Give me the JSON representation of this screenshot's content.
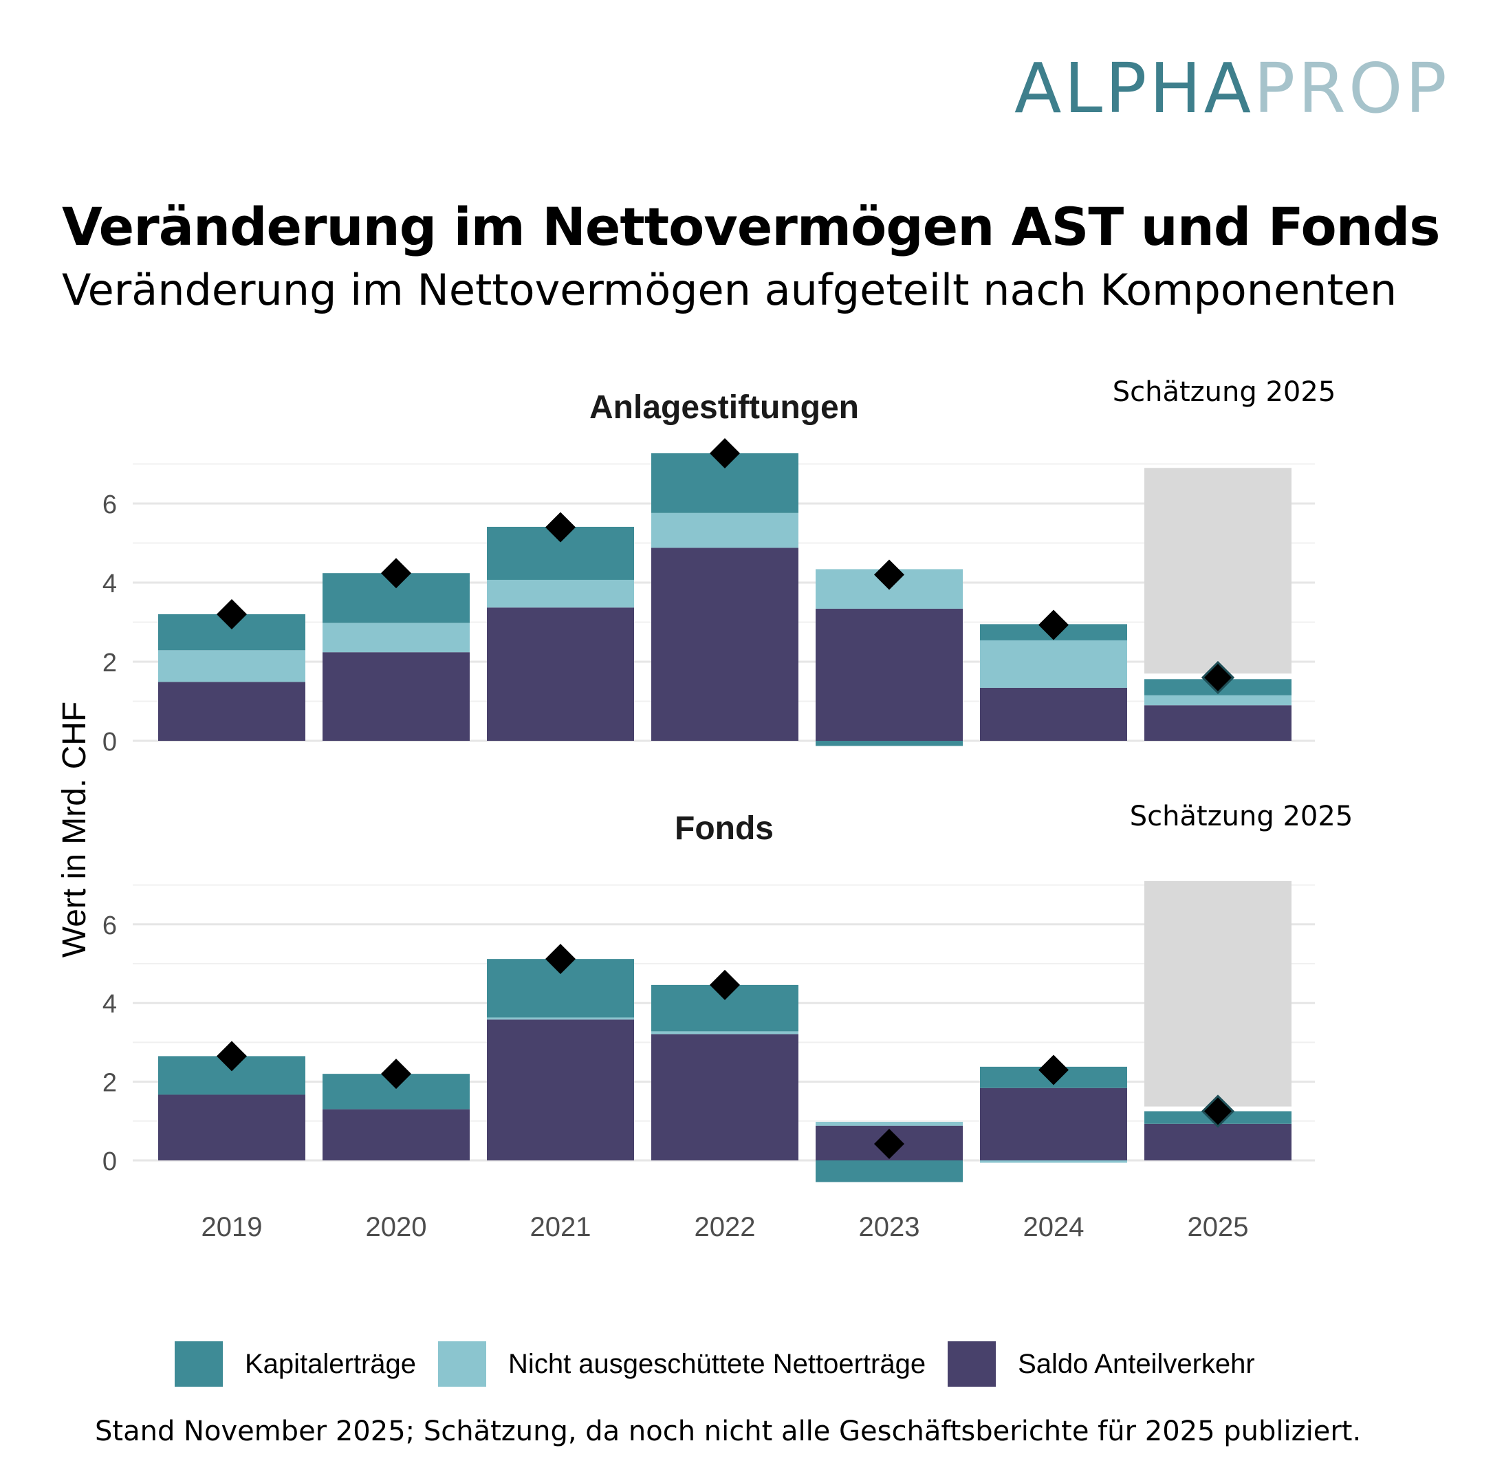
{
  "logo": {
    "part1": "ALPHA",
    "part2": "PROP"
  },
  "header": {
    "title": "Veränderung im Nettovermögen AST und Fonds",
    "subtitle": "Veränderung im Nettovermögen aufgeteilt nach Komponenten"
  },
  "colors": {
    "kapitalertraege": "#3e8b96",
    "nicht_ausgeschuettet": "#8bc5cf",
    "saldo": "#48416b",
    "estimate_band": "#d9d9d9",
    "marker": "#000000"
  },
  "legend": [
    {
      "key": "kapitalertraege",
      "label": "Kapitalerträge"
    },
    {
      "key": "nicht_ausgeschuettet",
      "label": "Nicht ausgeschüttete Nettoerträge"
    },
    {
      "key": "saldo",
      "label": "Saldo Anteilverkehr"
    }
  ],
  "footer": "Stand November 2025; Schätzung, da noch nicht alle Geschäftsberichte für 2025 publiziert.",
  "chart_data": [
    {
      "type": "bar",
      "stacked": true,
      "title": "Anlagestiftungen",
      "annotation": "Schätzung 2025",
      "ylabel": "Wert in Mrd. CHF",
      "categories": [
        "2019",
        "2020",
        "2021",
        "2022",
        "2023",
        "2024",
        "2025"
      ],
      "yticks": [
        0,
        2,
        4,
        6
      ],
      "ylim": [
        -0.3,
        7.6
      ],
      "series": [
        {
          "name": "Saldo Anteilverkehr",
          "key": "saldo",
          "values": [
            1.49,
            2.24,
            3.37,
            4.88,
            3.34,
            1.34,
            0.9
          ]
        },
        {
          "name": "Nicht ausgeschüttete Nettoerträge",
          "key": "nicht_ausgeschuettet",
          "values": [
            0.8,
            0.74,
            0.7,
            0.88,
            1.0,
            1.2,
            0.25
          ]
        },
        {
          "name": "Kapitalerträge",
          "key": "kapitalertraege",
          "values": [
            0.91,
            1.26,
            1.34,
            1.51,
            -0.13,
            0.41,
            0.41
          ]
        }
      ],
      "total_markers": [
        3.2,
        4.24,
        5.4,
        7.27,
        4.2,
        2.93,
        1.6
      ],
      "estimate_band": {
        "category": "2025",
        "from": 1.7,
        "to": 6.9
      }
    },
    {
      "type": "bar",
      "stacked": true,
      "title": "Fonds",
      "annotation": "Schätzung 2025",
      "ylabel": "Wert in Mrd. CHF",
      "categories": [
        "2019",
        "2020",
        "2021",
        "2022",
        "2023",
        "2024",
        "2025"
      ],
      "yticks": [
        0,
        2,
        4,
        6
      ],
      "ylim": [
        -0.7,
        7.4
      ],
      "series": [
        {
          "name": "Saldo Anteilverkehr",
          "key": "saldo",
          "values": [
            1.67,
            1.3,
            3.58,
            3.21,
            0.88,
            1.84,
            0.93
          ]
        },
        {
          "name": "Nicht ausgeschüttete Nettoerträge",
          "key": "nicht_ausgeschuettet",
          "values": [
            0.0,
            0.0,
            0.05,
            0.07,
            0.1,
            -0.06,
            0.0
          ]
        },
        {
          "name": "Kapitalerträge",
          "key": "kapitalertraege",
          "values": [
            0.98,
            0.9,
            1.49,
            1.18,
            -0.55,
            0.54,
            0.32
          ]
        }
      ],
      "total_markers": [
        2.65,
        2.2,
        5.12,
        4.46,
        0.42,
        2.3,
        1.25
      ],
      "estimate_band": {
        "category": "2025",
        "from": 1.37,
        "to": 7.1
      }
    }
  ]
}
